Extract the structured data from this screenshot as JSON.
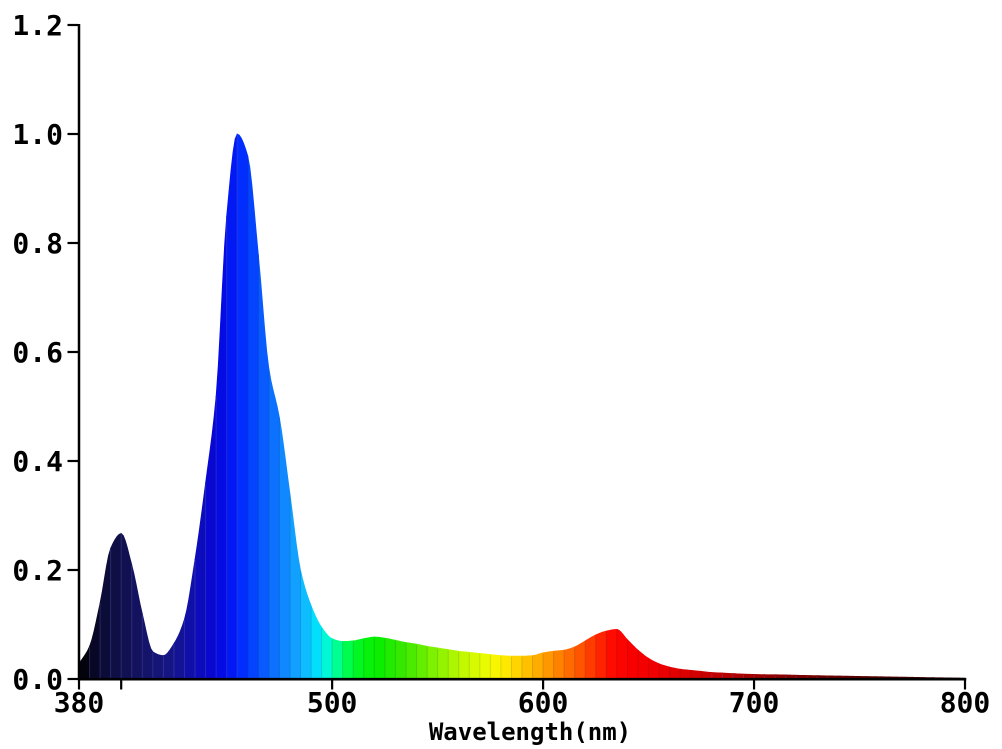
{
  "chart_data": {
    "type": "area",
    "title": "",
    "xlabel": "Wavelength(nm)",
    "ylabel": "",
    "xlim": [
      380,
      800
    ],
    "ylim": [
      0,
      1.2
    ],
    "grid": false,
    "legend": "none",
    "background": "#ffffff",
    "axis_color": "#000000",
    "bin_width_nm": 5,
    "x": [
      380,
      385,
      390,
      395,
      400,
      405,
      410,
      415,
      420,
      425,
      430,
      435,
      440,
      445,
      450,
      455,
      460,
      465,
      470,
      475,
      480,
      485,
      490,
      495,
      500,
      505,
      510,
      515,
      520,
      525,
      530,
      535,
      540,
      545,
      550,
      555,
      560,
      565,
      570,
      575,
      580,
      585,
      590,
      595,
      600,
      605,
      610,
      615,
      620,
      625,
      630,
      635,
      640,
      645,
      650,
      655,
      660,
      665,
      670,
      675,
      680,
      685,
      690,
      695,
      700,
      705,
      710,
      715,
      720,
      725,
      730,
      735,
      740,
      745,
      750,
      755,
      760,
      765,
      770,
      775,
      780,
      785,
      790,
      795,
      800
    ],
    "values": [
      0.028,
      0.06,
      0.14,
      0.24,
      0.267,
      0.21,
      0.12,
      0.05,
      0.043,
      0.065,
      0.11,
      0.22,
      0.36,
      0.52,
      0.85,
      1.0,
      0.96,
      0.78,
      0.57,
      0.48,
      0.34,
      0.2,
      0.135,
      0.095,
      0.074,
      0.069,
      0.07,
      0.074,
      0.077,
      0.075,
      0.071,
      0.067,
      0.064,
      0.06,
      0.057,
      0.054,
      0.051,
      0.049,
      0.047,
      0.045,
      0.043,
      0.042,
      0.042,
      0.043,
      0.048,
      0.051,
      0.053,
      0.059,
      0.07,
      0.081,
      0.088,
      0.091,
      0.072,
      0.053,
      0.038,
      0.028,
      0.022,
      0.018,
      0.016,
      0.014,
      0.012,
      0.011,
      0.01,
      0.009,
      0.0085,
      0.008,
      0.0078,
      0.0075,
      0.007,
      0.0065,
      0.0062,
      0.0058,
      0.0055,
      0.0052,
      0.0048,
      0.0045,
      0.0042,
      0.0038,
      0.0035,
      0.0032,
      0.0028,
      0.0025,
      0.0022,
      0.0019,
      0.0016
    ],
    "peaks": [
      {
        "wavelength": 400,
        "value": 0.267
      },
      {
        "wavelength": 455,
        "value": 1.0
      },
      {
        "wavelength": 520,
        "value": 0.077
      },
      {
        "wavelength": 635,
        "value": 0.091
      }
    ],
    "xticks": [
      {
        "v": 380,
        "label": "380"
      },
      {
        "v": 400,
        "label": ""
      },
      {
        "v": 500,
        "label": "500"
      },
      {
        "v": 600,
        "label": "600"
      },
      {
        "v": 700,
        "label": "700"
      },
      {
        "v": 800,
        "label": "800"
      }
    ],
    "yticks": [
      {
        "v": 0.0,
        "label": "0.0"
      },
      {
        "v": 0.2,
        "label": "0.2"
      },
      {
        "v": 0.4,
        "label": "0.4"
      },
      {
        "v": 0.6,
        "label": "0.6"
      },
      {
        "v": 0.8,
        "label": "0.8"
      },
      {
        "v": 1.0,
        "label": "1.0"
      },
      {
        "v": 1.2,
        "label": "1.2"
      }
    ],
    "color_stops": [
      [
        380,
        "#000000"
      ],
      [
        390,
        "#0b0b33"
      ],
      [
        400,
        "#10104c"
      ],
      [
        410,
        "#131364"
      ],
      [
        420,
        "#16167e"
      ],
      [
        428,
        "#131398"
      ],
      [
        436,
        "#0d0db6"
      ],
      [
        444,
        "#0707d6"
      ],
      [
        450,
        "#0310ec"
      ],
      [
        456,
        "#0026ff"
      ],
      [
        462,
        "#0542ff"
      ],
      [
        470,
        "#0c66ff"
      ],
      [
        478,
        "#108aff"
      ],
      [
        485,
        "#12acff"
      ],
      [
        490,
        "#08ceff"
      ],
      [
        494,
        "#00e8fa"
      ],
      [
        499,
        "#00ffc8"
      ],
      [
        504,
        "#00ff78"
      ],
      [
        509,
        "#00fc3c"
      ],
      [
        515,
        "#04f410"
      ],
      [
        522,
        "#0aee00"
      ],
      [
        532,
        "#32e800"
      ],
      [
        542,
        "#60ee00"
      ],
      [
        552,
        "#92f400"
      ],
      [
        562,
        "#c0f800"
      ],
      [
        572,
        "#e8fc00"
      ],
      [
        580,
        "#fff200"
      ],
      [
        588,
        "#ffd200"
      ],
      [
        597,
        "#ffae00"
      ],
      [
        606,
        "#ff8800"
      ],
      [
        615,
        "#ff6000"
      ],
      [
        624,
        "#ff3400"
      ],
      [
        632,
        "#ff0c00"
      ],
      [
        642,
        "#f80000"
      ],
      [
        655,
        "#ee0000"
      ],
      [
        670,
        "#d60000"
      ],
      [
        690,
        "#b20000"
      ],
      [
        712,
        "#8c0000"
      ],
      [
        740,
        "#640000"
      ],
      [
        770,
        "#420000"
      ],
      [
        800,
        "#2a0000"
      ]
    ]
  }
}
